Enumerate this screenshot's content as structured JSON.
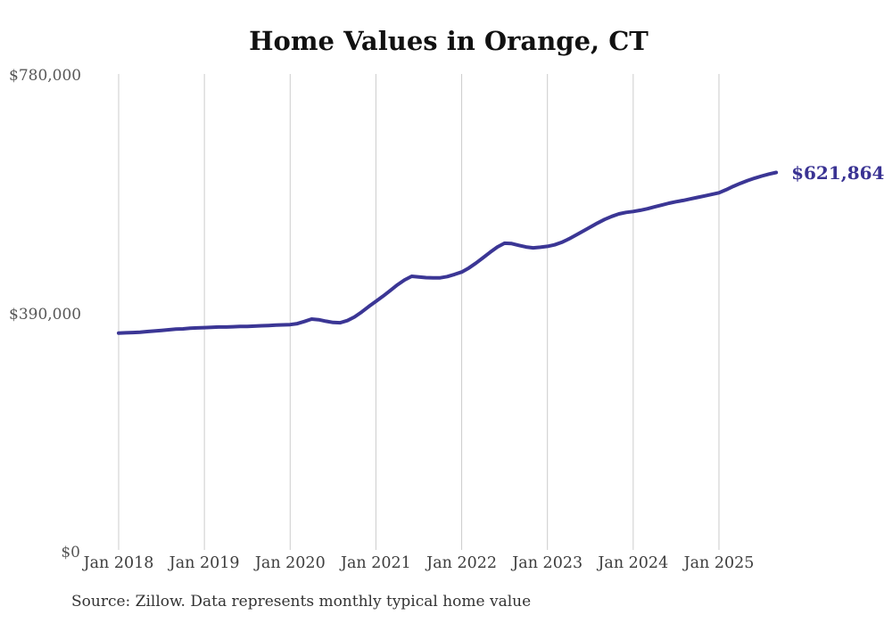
{
  "page": {
    "title": "Home Values in Orange, CT",
    "source_note": "Source: Zillow. Data represents monthly typical home value"
  },
  "colors": {
    "line": "#3b3695",
    "end_label": "#3a3393",
    "gridline": "#cccccc",
    "y_tick_label": "#575757",
    "x_tick_label": "#3d3d3d",
    "title": "#111111",
    "source": "#333333",
    "background": "#ffffff"
  },
  "chart_data": {
    "type": "line",
    "title": "Home Values in Orange, CT",
    "xlabel": "",
    "ylabel": "",
    "grid": "vertical-only",
    "legend": "none",
    "ylim": [
      0,
      780000
    ],
    "y_ticks": [
      0,
      390000,
      780000
    ],
    "y_tick_labels": [
      "$0",
      "$390,000",
      "$780,000"
    ],
    "x_tick_labels": [
      "Jan 2018",
      "Jan 2019",
      "Jan 2020",
      "Jan 2021",
      "Jan 2022",
      "Jan 2023",
      "Jan 2024",
      "Jan 2025"
    ],
    "x_start_month": "Jan 2018",
    "x_end_month": "Sep 2025",
    "final_value": 621864,
    "final_value_label": "$621,864",
    "series": [
      {
        "name": "Typical home value",
        "values": [
          359000,
          359500,
          360000,
          360500,
          361500,
          362500,
          363500,
          364500,
          365500,
          366000,
          367000,
          367500,
          368000,
          368500,
          369000,
          369000,
          369500,
          370000,
          370000,
          370500,
          371000,
          371500,
          372000,
          372500,
          373000,
          374500,
          378000,
          382000,
          381000,
          378500,
          376500,
          376000,
          379500,
          385500,
          393500,
          402500,
          411000,
          419500,
          428500,
          438000,
          446000,
          452000,
          451000,
          449800,
          449300,
          449500,
          451500,
          455000,
          459000,
          465500,
          473500,
          482500,
          491500,
          500000,
          506000,
          505500,
          502500,
          500000,
          498500,
          499500,
          501000,
          503500,
          507500,
          513000,
          519500,
          526000,
          532500,
          539000,
          545000,
          550000,
          554000,
          556500,
          558000,
          560000,
          562500,
          565500,
          568500,
          571500,
          574000,
          576000,
          578500,
          581000,
          583500,
          586000,
          588500,
          593500,
          599000,
          604000,
          608500,
          612500,
          616000,
          619200,
          621864
        ]
      }
    ]
  }
}
